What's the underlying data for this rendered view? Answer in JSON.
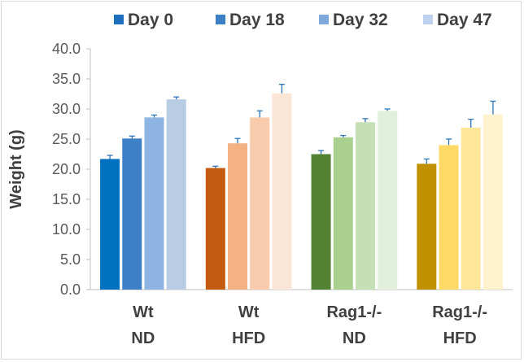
{
  "chart_data": {
    "type": "bar",
    "ylabel": "Weight (g)",
    "ylim": [
      0,
      40
    ],
    "yticks": [
      "0.0",
      "5.0",
      "10.0",
      "15.0",
      "20.0",
      "25.0",
      "30.0",
      "35.0",
      "40.0"
    ],
    "categories": [
      [
        "Wt",
        "ND"
      ],
      [
        "Wt",
        "HFD"
      ],
      [
        "Rag1-/-",
        "ND"
      ],
      [
        "Rag1-/-",
        "HFD"
      ]
    ],
    "legend_position": "top",
    "legend_colors": [
      "#1f6fbf",
      "#3d7fc4",
      "#7fa9dc",
      "#bdd0ec"
    ],
    "series": [
      {
        "name": "Day 0",
        "values": [
          21.7,
          20.2,
          22.5,
          20.9
        ],
        "errors": [
          0.6,
          0.3,
          0.6,
          0.8
        ]
      },
      {
        "name": "Day 18",
        "values": [
          25.1,
          24.3,
          25.3,
          24.0
        ],
        "errors": [
          0.4,
          0.8,
          0.3,
          1.0
        ]
      },
      {
        "name": "Day 32",
        "values": [
          28.6,
          28.6,
          27.8,
          26.9
        ],
        "errors": [
          0.4,
          1.1,
          0.6,
          1.4
        ]
      },
      {
        "name": "Day 47",
        "values": [
          31.6,
          32.6,
          29.7,
          29.1
        ],
        "errors": [
          0.4,
          1.5,
          0.3,
          2.2
        ]
      }
    ],
    "bar_colors": [
      [
        "#0070c0",
        "#3d80c6",
        "#8eb4e3",
        "#b8cce4"
      ],
      [
        "#c55a11",
        "#f4b183",
        "#f8cbad",
        "#fbe5d6"
      ],
      [
        "#548235",
        "#a9d08e",
        "#c5e0b4",
        "#e2efda"
      ],
      [
        "#bf9000",
        "#ffd966",
        "#ffe699",
        "#fff2cc"
      ]
    ],
    "error_color": "#2e75b6",
    "grid": false
  }
}
